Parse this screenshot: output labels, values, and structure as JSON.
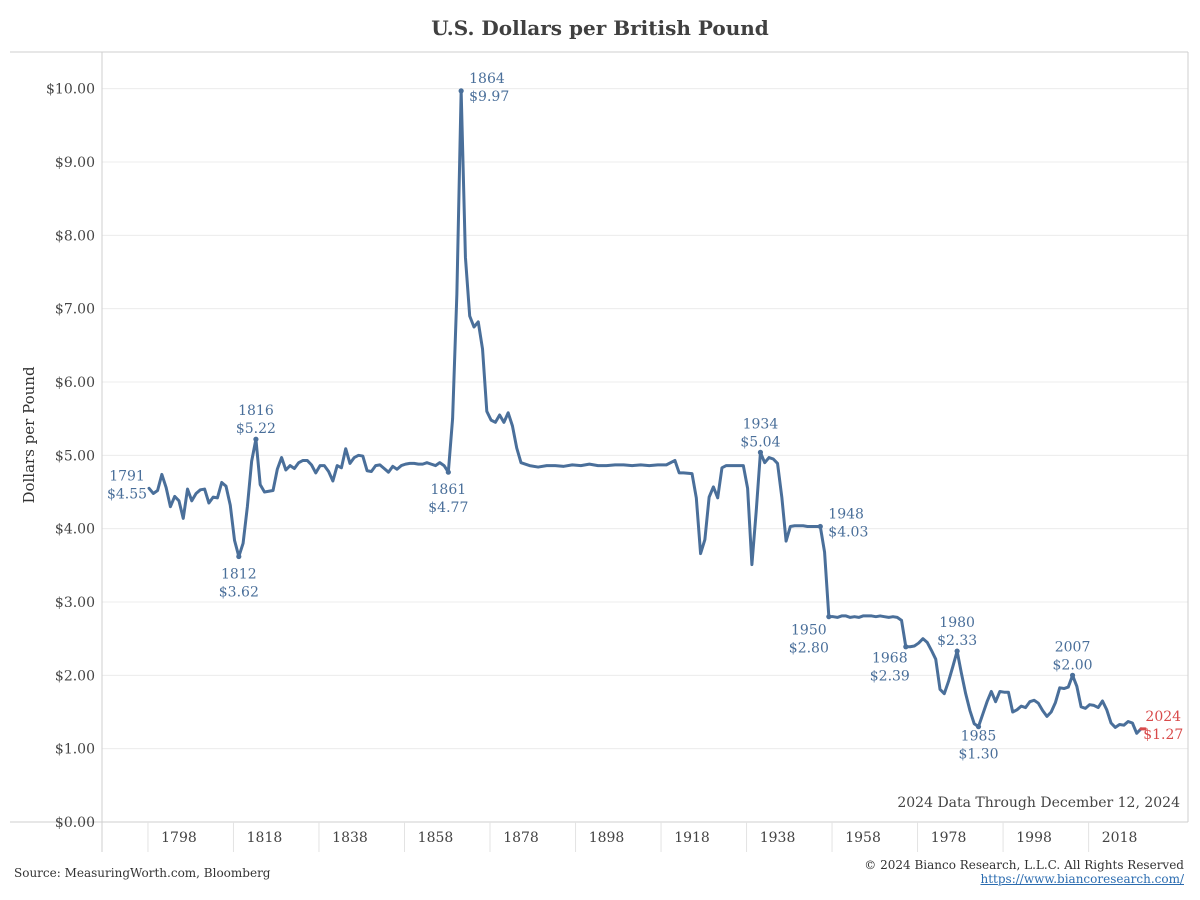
{
  "header": {
    "title": "U.S. Dollars per British Pound"
  },
  "footer": {
    "source": "Source: MeasuringWorth.com, Bloomberg",
    "copyright": "© 2024 Bianco Research, L.L.C. All Rights Reserved",
    "link": "https://www.biancoresearch.com/"
  },
  "chart_data": {
    "type": "line",
    "title": "U.S. Dollars per British Pound",
    "xlabel": "",
    "ylabel": "Dollars per Pound",
    "xlim": [
      1780,
      2034
    ],
    "ylim": [
      0,
      10.5
    ],
    "x_ticks": [
      1798,
      1818,
      1838,
      1858,
      1878,
      1898,
      1918,
      1938,
      1958,
      1978,
      1998,
      2018
    ],
    "x_tick_labels": [
      "1798",
      "1818",
      "1838",
      "1858",
      "1878",
      "1898",
      "1918",
      "1938",
      "1958",
      "1978",
      "1998",
      "2018"
    ],
    "y_ticks": [
      0,
      1,
      2,
      3,
      4,
      5,
      6,
      7,
      8,
      9,
      10
    ],
    "y_tick_labels": [
      "$0.00",
      "$1.00",
      "$2.00",
      "$3.00",
      "$4.00",
      "$5.00",
      "$6.00",
      "$7.00",
      "$8.00",
      "$9.00",
      "$10.00"
    ],
    "grid": "horizontal",
    "line_color": "#4a6f9a",
    "last_point_color": "#d94b4b",
    "note": "2024 Data Through December 12, 2024",
    "series": [
      {
        "x": [
          1791,
          1792,
          1793,
          1794,
          1795,
          1796,
          1797,
          1798,
          1799,
          1800,
          1801,
          1802,
          1803,
          1804,
          1805,
          1806,
          1807,
          1808,
          1809,
          1810,
          1811,
          1812,
          1813,
          1814,
          1815,
          1816,
          1817,
          1818,
          1819,
          1820,
          1821,
          1822,
          1823,
          1824,
          1825,
          1826,
          1827,
          1828,
          1829,
          1830,
          1831,
          1832,
          1833,
          1834,
          1835,
          1836,
          1837,
          1838,
          1839,
          1840,
          1841,
          1842,
          1843,
          1844,
          1845,
          1846,
          1847,
          1848,
          1849,
          1850,
          1851,
          1852,
          1853,
          1854,
          1855,
          1856,
          1857,
          1858,
          1859,
          1860,
          1861,
          1862,
          1863,
          1864,
          1865,
          1866,
          1867,
          1868,
          1869,
          1870,
          1871,
          1872,
          1873,
          1874,
          1875,
          1876,
          1877,
          1878,
          1880,
          1882,
          1884,
          1886,
          1888,
          1890,
          1892,
          1894,
          1896,
          1898,
          1900,
          1902,
          1904,
          1906,
          1908,
          1910,
          1912,
          1914,
          1915,
          1916,
          1918,
          1919,
          1920,
          1921,
          1922,
          1923,
          1924,
          1925,
          1926,
          1927,
          1928,
          1929,
          1930,
          1931,
          1932,
          1933,
          1934,
          1935,
          1936,
          1937,
          1938,
          1939,
          1940,
          1941,
          1942,
          1943,
          1944,
          1945,
          1946,
          1947,
          1948,
          1949,
          1950,
          1951,
          1952,
          1953,
          1954,
          1955,
          1956,
          1957,
          1958,
          1959,
          1960,
          1961,
          1962,
          1963,
          1964,
          1965,
          1966,
          1967,
          1968,
          1969,
          1970,
          1971,
          1972,
          1973,
          1974,
          1975,
          1976,
          1977,
          1978,
          1979,
          1980,
          1981,
          1982,
          1983,
          1984,
          1985,
          1986,
          1987,
          1988,
          1989,
          1990,
          1991,
          1992,
          1993,
          1994,
          1995,
          1996,
          1997,
          1998,
          1999,
          2000,
          2001,
          2002,
          2003,
          2004,
          2005,
          2006,
          2007,
          2008,
          2009,
          2010,
          2011,
          2012,
          2013,
          2014,
          2015,
          2016,
          2017,
          2018,
          2019,
          2020,
          2021,
          2022,
          2023,
          2024
        ],
        "values": [
          4.55,
          4.48,
          4.52,
          4.74,
          4.56,
          4.3,
          4.44,
          4.38,
          4.14,
          4.54,
          4.38,
          4.48,
          4.53,
          4.54,
          4.35,
          4.43,
          4.42,
          4.63,
          4.58,
          4.32,
          3.84,
          3.62,
          3.8,
          4.3,
          4.92,
          5.22,
          4.6,
          4.5,
          4.51,
          4.52,
          4.81,
          4.97,
          4.8,
          4.86,
          4.82,
          4.9,
          4.93,
          4.93,
          4.87,
          4.76,
          4.86,
          4.86,
          4.78,
          4.65,
          4.86,
          4.83,
          5.09,
          4.89,
          4.97,
          5.0,
          4.99,
          4.79,
          4.78,
          4.86,
          4.87,
          4.82,
          4.77,
          4.85,
          4.81,
          4.86,
          4.88,
          4.89,
          4.89,
          4.88,
          4.88,
          4.9,
          4.88,
          4.86,
          4.9,
          4.86,
          4.77,
          5.5,
          7.2,
          9.97,
          7.7,
          6.9,
          6.75,
          6.82,
          6.45,
          5.6,
          5.48,
          5.45,
          5.55,
          5.45,
          5.58,
          5.4,
          5.1,
          4.9,
          4.86,
          4.84,
          4.86,
          4.86,
          4.85,
          4.87,
          4.86,
          4.88,
          4.86,
          4.86,
          4.87,
          4.87,
          4.86,
          4.87,
          4.86,
          4.87,
          4.87,
          4.93,
          4.76,
          4.76,
          4.75,
          4.42,
          3.66,
          3.85,
          4.43,
          4.57,
          4.42,
          4.83,
          4.86,
          4.86,
          4.86,
          4.86,
          4.86,
          4.55,
          3.51,
          4.23,
          5.04,
          4.9,
          4.97,
          4.95,
          4.89,
          4.43,
          3.83,
          4.03,
          4.04,
          4.04,
          4.04,
          4.03,
          4.03,
          4.03,
          4.03,
          3.68,
          2.8,
          2.8,
          2.79,
          2.81,
          2.81,
          2.79,
          2.8,
          2.79,
          2.81,
          2.81,
          2.81,
          2.8,
          2.81,
          2.8,
          2.79,
          2.8,
          2.79,
          2.75,
          2.39,
          2.39,
          2.4,
          2.44,
          2.5,
          2.45,
          2.34,
          2.22,
          1.81,
          1.75,
          1.92,
          2.12,
          2.33,
          2.03,
          1.75,
          1.52,
          1.34,
          1.3,
          1.47,
          1.64,
          1.78,
          1.64,
          1.78,
          1.77,
          1.77,
          1.5,
          1.53,
          1.58,
          1.56,
          1.64,
          1.66,
          1.62,
          1.52,
          1.44,
          1.5,
          1.63,
          1.83,
          1.82,
          1.84,
          2.0,
          1.85,
          1.57,
          1.55,
          1.6,
          1.59,
          1.56,
          1.65,
          1.53,
          1.35,
          1.29,
          1.33,
          1.32,
          1.37,
          1.35,
          1.21,
          1.27,
          1.27
        ]
      }
    ],
    "annotations": [
      {
        "x": 1791,
        "y": 4.55,
        "year": "1791",
        "value": "$4.55"
      },
      {
        "x": 1812,
        "y": 3.62,
        "year": "1812",
        "value": "$3.62"
      },
      {
        "x": 1816,
        "y": 5.22,
        "year": "1816",
        "value": "$5.22"
      },
      {
        "x": 1861,
        "y": 4.77,
        "year": "1861",
        "value": "$4.77"
      },
      {
        "x": 1864,
        "y": 9.97,
        "year": "1864",
        "value": "$9.97"
      },
      {
        "x": 1934,
        "y": 5.04,
        "year": "1934",
        "value": "$5.04"
      },
      {
        "x": 1948,
        "y": 4.03,
        "year": "1948",
        "value": "$4.03"
      },
      {
        "x": 1950,
        "y": 2.8,
        "year": "1950",
        "value": "$2.80"
      },
      {
        "x": 1968,
        "y": 2.39,
        "year": "1968",
        "value": "$2.39"
      },
      {
        "x": 1980,
        "y": 2.33,
        "year": "1980",
        "value": "$2.33"
      },
      {
        "x": 1985,
        "y": 1.3,
        "year": "1985",
        "value": "$1.30"
      },
      {
        "x": 2007,
        "y": 2.0,
        "year": "2007",
        "value": "$2.00"
      },
      {
        "x": 2024,
        "y": 1.27,
        "year": "2024",
        "value": "$1.27"
      }
    ]
  }
}
